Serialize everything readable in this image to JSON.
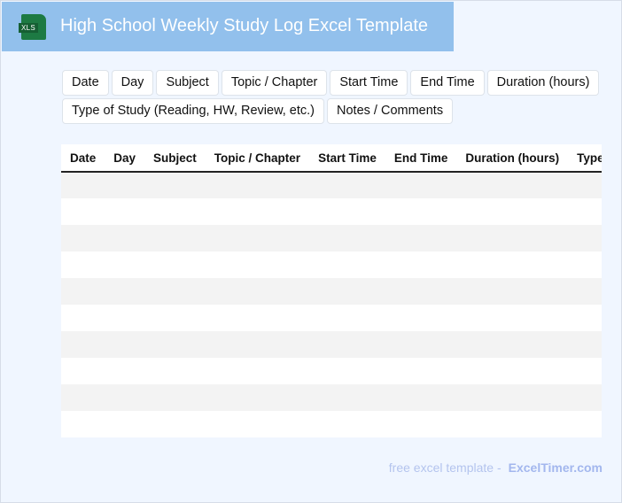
{
  "header": {
    "icon": "xls-file-icon",
    "icon_label": "XLS",
    "title": "High School Weekly Study Log Excel Template"
  },
  "chips": [
    "Date",
    "Day",
    "Subject",
    "Topic / Chapter",
    "Start Time",
    "End Time",
    "Duration (hours)",
    "Type of Study (Reading, HW, Review, etc.)",
    "Notes / Comments"
  ],
  "table": {
    "columns": [
      "Date",
      "Day",
      "Subject",
      "Topic / Chapter",
      "Start Time",
      "End Time",
      "Duration (hours)",
      "Type of Study (Reading, HW, Review, etc.)",
      "Notes / Comments"
    ],
    "row_count": 10
  },
  "footer": {
    "text": "free excel template -",
    "brand": "ExcelTimer.com"
  }
}
